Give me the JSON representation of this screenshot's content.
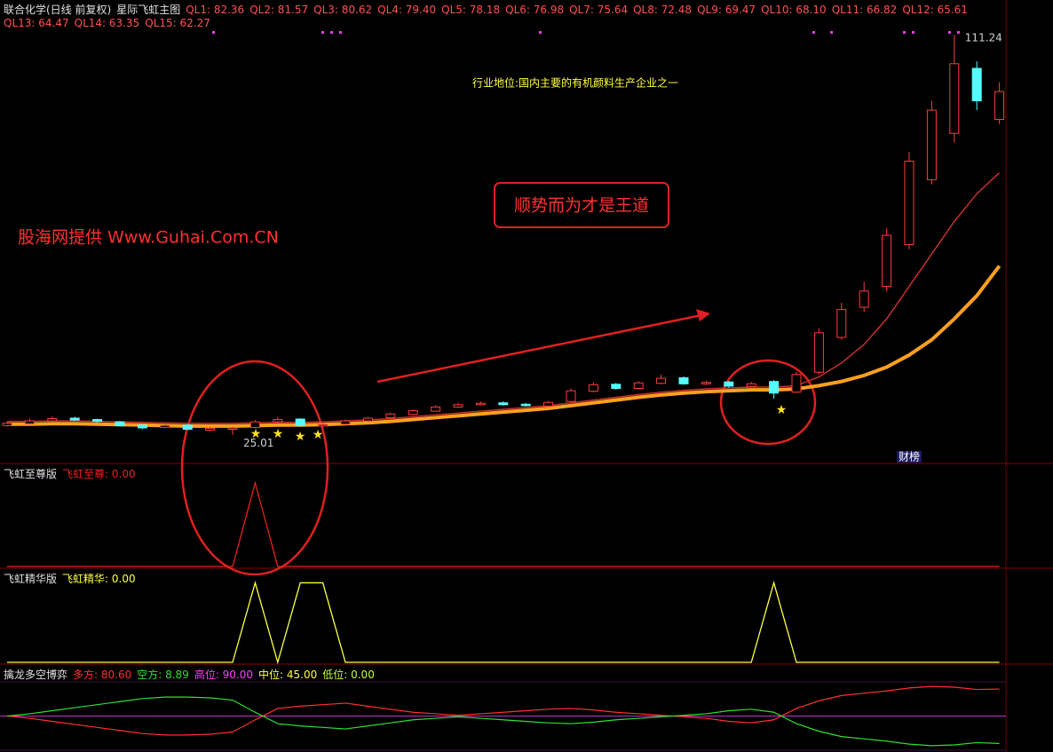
{
  "header": {
    "stock": "联合化学(日线 前复权)",
    "indicator": "星际飞虹主图",
    "ql_labels": [
      "QL1: 82.36",
      "QL2: 81.57",
      "QL3: 80.62",
      "QL4: 79.40",
      "QL5: 78.18",
      "QL6: 76.98",
      "QL7: 75.64",
      "QL8: 72.48",
      "QL9: 69.47",
      "QL10: 68.10",
      "QL11: 66.82",
      "QL12: 65.61",
      "QL13: 64.47",
      "QL14: 63.35",
      "QL15: 62.27"
    ]
  },
  "annotations": {
    "industry": "行业地位:国内主要的有机颜料生产企业之一",
    "slogan": "顺势而为才是王道",
    "source": "股海网提供 Www.Guhai.Com.CN",
    "badge": "财榜"
  },
  "chart_data": [
    {
      "type": "candlestick",
      "ylim": [
        24,
        113
      ],
      "up_color": "#ff3c3c",
      "down_color": "#54ffff",
      "high_label": 111.24,
      "low_label": 25.01,
      "open": [
        27.0,
        27.4,
        28.0,
        28.6,
        28.3,
        27.8,
        27.1,
        26.6,
        27.1,
        26.0,
        26.2,
        26.6,
        27.8,
        28.4,
        26.9,
        27.3,
        28.0,
        28.7,
        29.4,
        30.1,
        31.0,
        31.5,
        31.9,
        31.6,
        31.2,
        32.2,
        34.4,
        35.9,
        35.0,
        36.1,
        37.3,
        36.0,
        36.4,
        35.4,
        36.5,
        34.2,
        38.5,
        46.0,
        52.5,
        57.0,
        66.0,
        80.0,
        90.0,
        104.0,
        93.0
      ],
      "high": [
        27.8,
        28.5,
        29.0,
        28.9,
        28.5,
        28.0,
        27.3,
        27.3,
        27.3,
        26.7,
        26.8,
        28.2,
        28.9,
        28.6,
        27.5,
        28.3,
        28.9,
        29.8,
        30.5,
        31.4,
        31.9,
        32.2,
        32.2,
        31.9,
        32.3,
        35.0,
        36.3,
        36.2,
        36.6,
        38.0,
        37.6,
        36.7,
        36.6,
        36.4,
        36.8,
        38.6,
        48.0,
        53.5,
        58.0,
        69.5,
        86.0,
        97.0,
        111.24,
        105.5,
        101.0
      ],
      "low": [
        26.8,
        27.2,
        27.8,
        28.0,
        27.6,
        26.8,
        26.2,
        26.4,
        26.0,
        25.8,
        25.01,
        26.4,
        27.6,
        26.8,
        26.6,
        27.1,
        27.8,
        28.5,
        29.2,
        30.0,
        30.8,
        31.3,
        31.3,
        31.1,
        31.0,
        32.0,
        34.1,
        34.7,
        34.8,
        35.9,
        35.8,
        35.8,
        35.2,
        35.3,
        32.8,
        34.0,
        38.0,
        45.5,
        51.5,
        56.0,
        65.0,
        79.0,
        88.0,
        95.0,
        92.0
      ],
      "close": [
        27.5,
        28.0,
        28.5,
        28.2,
        27.9,
        27.0,
        26.5,
        27.0,
        26.2,
        26.4,
        26.5,
        27.8,
        28.3,
        27.0,
        27.2,
        28.0,
        28.6,
        29.5,
        30.2,
        31.0,
        31.5,
        31.8,
        31.5,
        31.3,
        32.0,
        34.5,
        35.8,
        35.0,
        36.2,
        37.2,
        36.0,
        36.3,
        35.5,
        36.0,
        34.0,
        38.0,
        47.0,
        52.0,
        56.0,
        68.0,
        84.0,
        95.0,
        105.0,
        97.0,
        99.0
      ],
      "ma_top": [
        27.9,
        27.9,
        28.0,
        28.0,
        27.9,
        27.8,
        27.7,
        27.6,
        27.5,
        27.5,
        27.5,
        27.6,
        27.7,
        27.7,
        27.8,
        28.0,
        28.2,
        28.5,
        28.9,
        29.3,
        29.7,
        30.1,
        30.5,
        30.9,
        31.3,
        31.9,
        32.5,
        33.1,
        33.7,
        34.2,
        34.6,
        34.9,
        35.1,
        35.3,
        35.3,
        35.6,
        37.5,
        40.5,
        44.5,
        50.0,
        57.0,
        64.0,
        71.0,
        77.0,
        81.5
      ],
      "ma_bottom": [
        27.3,
        27.3,
        27.4,
        27.4,
        27.3,
        27.2,
        27.1,
        27.0,
        26.9,
        26.9,
        26.9,
        27.0,
        27.1,
        27.1,
        27.2,
        27.4,
        27.6,
        27.9,
        28.3,
        28.7,
        29.1,
        29.5,
        29.9,
        30.3,
        30.7,
        31.3,
        31.9,
        32.5,
        33.1,
        33.6,
        34.0,
        34.3,
        34.5,
        34.7,
        34.7,
        34.9,
        35.6,
        36.5,
        37.8,
        39.6,
        42.2,
        45.5,
        50.0,
        55.0,
        61.4
      ]
    },
    {
      "type": "line",
      "title": "飞虹至尊版",
      "legend": "飞虹至尊: 0.00",
      "color": "#e82020",
      "ylim": [
        0,
        1.2
      ],
      "values": [
        0,
        0,
        0,
        0,
        0,
        0,
        0,
        0,
        0,
        0,
        0,
        1,
        0,
        0,
        0,
        0,
        0,
        0,
        0,
        0,
        0,
        0,
        0,
        0,
        0,
        0,
        0,
        0,
        0,
        0,
        0,
        0,
        0,
        0,
        0,
        0,
        0,
        0,
        0,
        0,
        0,
        0,
        0,
        0,
        0
      ]
    },
    {
      "type": "line",
      "title": "飞虹精华版",
      "legend": "飞虹精华: 0.00",
      "color": "#ffff40",
      "ylim": [
        0,
        1.15
      ],
      "values": [
        0,
        0,
        0,
        0,
        0,
        0,
        0,
        0,
        0,
        0,
        0,
        1,
        0,
        1,
        1,
        0,
        0,
        0,
        0,
        0,
        0,
        0,
        0,
        0,
        0,
        0,
        0,
        0,
        0,
        0,
        0,
        0,
        0,
        0,
        1,
        0,
        0,
        0,
        0,
        0,
        0,
        0,
        0,
        0,
        0
      ]
    },
    {
      "type": "line",
      "title": "擒龙多空博弈",
      "ylim": [
        0,
        90
      ],
      "levels": [
        {
          "label": "高位: 90.00",
          "value": 90,
          "color": "#ff40ff"
        },
        {
          "label": "中位: 45.00",
          "value": 45,
          "color": "#ffff40"
        },
        {
          "label": "低位: 0.00",
          "value": 0,
          "color": "#c0ff40"
        }
      ],
      "series": [
        {
          "name": "多方: 80.60",
          "color": "#ff3030",
          "values": [
            45,
            42,
            38,
            34,
            30,
            26,
            22,
            20,
            20,
            21,
            24,
            40,
            55,
            58,
            60,
            62,
            58,
            54,
            50,
            48,
            46,
            48,
            50,
            52,
            54,
            55,
            53,
            50,
            48,
            46,
            44,
            42,
            38,
            36,
            40,
            55,
            65,
            72,
            75,
            78,
            82,
            84,
            83,
            80,
            80.6
          ]
        },
        {
          "name": "空方: 8.89",
          "color": "#30e030",
          "values": [
            45,
            48,
            52,
            56,
            60,
            64,
            68,
            70,
            70,
            69,
            66,
            50,
            35,
            32,
            30,
            28,
            32,
            36,
            40,
            42,
            44,
            42,
            40,
            38,
            36,
            35,
            37,
            40,
            42,
            44,
            46,
            48,
            52,
            54,
            50,
            35,
            25,
            18,
            15,
            12,
            8,
            6,
            7,
            10,
            8.89
          ]
        }
      ]
    }
  ]
}
